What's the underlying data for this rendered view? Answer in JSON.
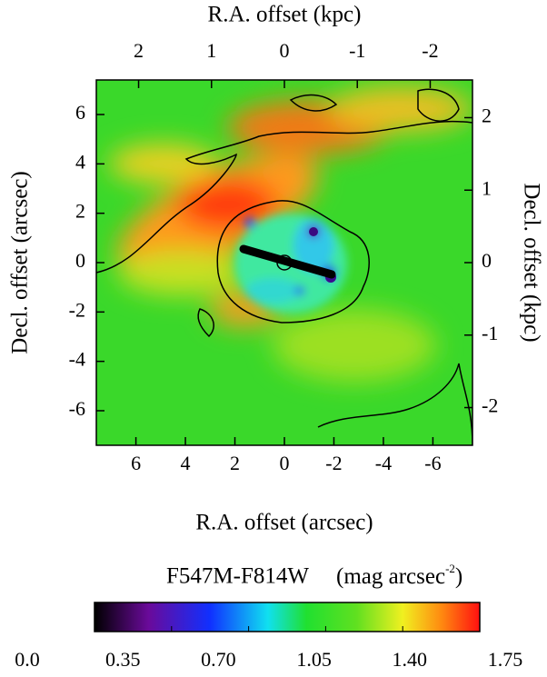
{
  "chart_data": {
    "type": "heatmap",
    "x_label": "R.A. offset (arcsec)",
    "y_label": "Decl. offset (arcsec)",
    "x2_label": "R.A. offset (kpc)",
    "y2_label": "Decl. offset (kpc)",
    "xlim": [
      7.6,
      -7.6
    ],
    "xticks": [
      6,
      4,
      2,
      0,
      -2,
      -4,
      -6
    ],
    "ylim": [
      -7.4,
      7.4
    ],
    "yticks": [
      -6,
      -4,
      -2,
      0,
      2,
      4,
      6
    ],
    "x2lim": [
      2.58,
      -2.58
    ],
    "x2ticks": [
      2,
      1,
      0,
      -1,
      -2
    ],
    "y2lim": [
      -2.52,
      2.52
    ],
    "y2ticks": [
      -2,
      -1,
      0,
      1,
      2
    ],
    "colorbar": {
      "label": "F547M-F814W",
      "units_prefix": "(mag arcsec",
      "units_exponent": "-2",
      "units_suffix": ")",
      "lim": [
        0,
        1.75
      ],
      "ticks": [
        {
          "value": 0,
          "label": "0.0"
        },
        0.35,
        {
          "value": 0.7,
          "label": "0.70"
        },
        1.05,
        {
          "value": 1.4,
          "label": "1.40"
        },
        1.75
      ]
    }
  }
}
